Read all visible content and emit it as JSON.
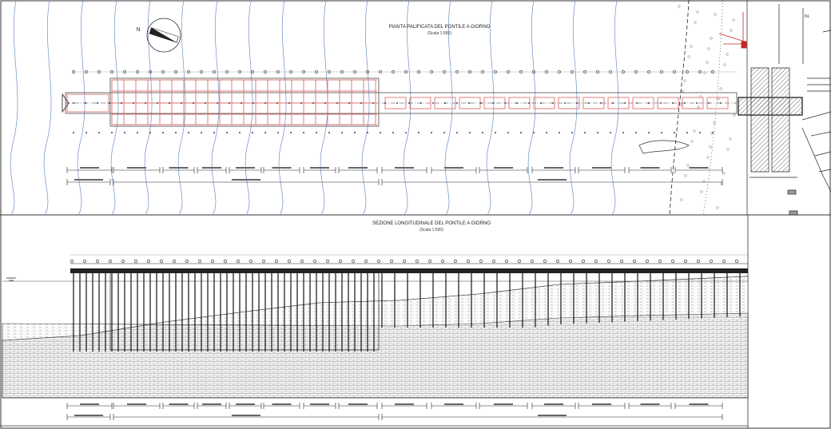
{
  "plan": {
    "title": "PIANTA PALIFICATA DEL PONTILE A GIORNO",
    "scale": "(Scala 1:500)"
  },
  "section": {
    "title": "SEZIONE LONGITUDINALE DEL PONTILE A GIORNO",
    "scale": "(Scala 1:500)"
  },
  "north_label": "N",
  "colors": {
    "line": "#1a1a1a",
    "contour": "#6f8fc9",
    "highlight": "#e07070",
    "water_hatch": "#555555"
  }
}
